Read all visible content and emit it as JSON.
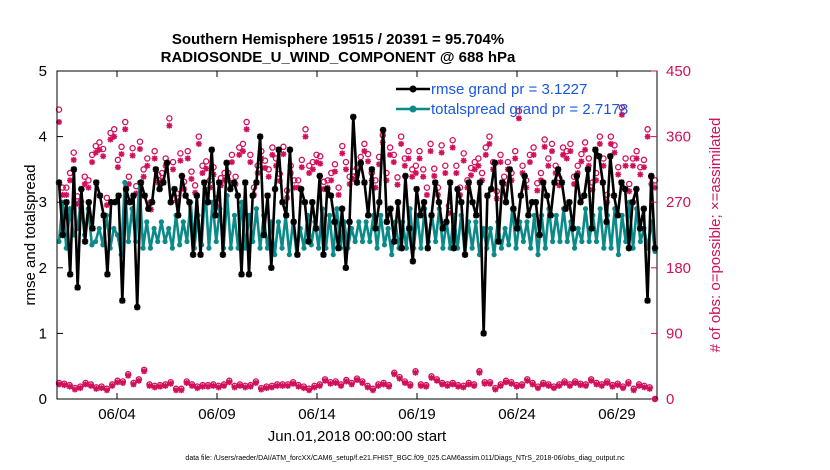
{
  "chart_data": {
    "type": "line",
    "title_line1": "Southern Hemisphere 19515 / 20391 = 95.704%",
    "title_line2": "RADIOSONDE_U_WIND_COMPONENT @ 688 hPa",
    "xlabel": "Jun.01,2018 00:00:00 start",
    "ylabel_left": "rmse and totalspread",
    "ylabel_right": "# of obs: o=possible; ×=assimilated",
    "xlim": [
      0,
      30
    ],
    "ylim_left": [
      0,
      5
    ],
    "ylim_right": [
      0,
      450
    ],
    "x_tick_values": [
      3,
      8,
      13,
      18,
      23,
      28
    ],
    "x_tick_labels": [
      "06/04",
      "06/09",
      "06/14",
      "06/19",
      "06/24",
      "06/29"
    ],
    "y_left_ticks": [
      "0",
      "1",
      "2",
      "3",
      "4",
      "5"
    ],
    "y_right_ticks": [
      "0",
      "90",
      "180",
      "270",
      "360",
      "450"
    ],
    "footnote": "data file: /Users/raeder/DAI/ATM_forcXX/CAM6_setup/f.e21.FHIST_BGC.f09_025.CAM6assim.011/Diags_NTrS_2018-06/obs_diag_output.nc",
    "colors": {
      "rmse": "#000000",
      "spread": "#0b8a8a",
      "obs": "#d0105a",
      "legend_text": "#1a57e0"
    },
    "series": [
      {
        "name": "rmse grand pr = 3.1227",
        "axis": "left",
        "values": [
          3.3,
          2.5,
          3.0,
          1.9,
          3.5,
          1.7,
          3.2,
          2.4,
          3.0,
          2.6,
          3.3,
          3.1,
          2.8,
          1.9,
          3.0,
          3.0,
          3.1,
          1.5,
          3.2,
          3.0,
          3.1,
          1.4,
          3.3,
          3.1,
          2.9,
          3.0,
          3.5,
          3.2,
          3.3,
          3.6,
          3.0,
          3.2,
          2.8,
          3.4,
          3.1,
          3.0,
          2.2,
          3.1,
          2.2,
          3.3,
          3.0,
          3.8,
          2.8,
          3.3,
          2.2,
          3.6,
          3.2,
          3.3,
          3.1,
          1.9,
          3.3,
          1.9,
          3.1,
          3.3,
          4.0,
          2.5,
          3.1,
          2.0,
          3.2,
          3.8,
          3.0,
          2.8,
          3.8,
          2.7,
          2.2,
          3.2,
          3.0,
          2.4,
          3.0,
          2.6,
          3.4,
          2.2,
          3.2,
          3.1,
          2.7,
          2.3,
          2.9,
          2.0,
          2.7,
          4.3,
          3.3,
          3.6,
          3.3,
          2.8,
          3.5,
          2.6,
          3.0,
          4.1,
          2.7,
          2.9,
          2.4,
          3.0,
          2.3,
          3.4,
          2.6,
          2.1,
          3.2,
          2.8,
          3.0,
          2.3,
          2.8,
          3.3,
          3.0,
          2.6,
          2.7,
          3.3,
          2.3,
          3.2,
          3.0,
          2.2,
          3.3,
          3.0,
          2.8,
          3.3,
          1.0,
          3.1,
          3.2,
          3.6,
          2.4,
          3.3,
          3.0,
          3.5,
          2.9,
          2.6,
          3.1,
          3.4,
          2.8,
          3.0,
          3.0,
          2.5,
          3.3,
          3.1,
          2.8,
          3.3,
          3.5,
          3.3,
          2.9,
          3.0,
          2.6,
          3.4,
          3.0,
          3.1,
          3.5,
          2.6,
          3.8,
          3.7,
          3.3,
          2.7,
          3.7,
          3.1,
          2.8,
          3.3,
          3.2,
          2.3,
          3.0,
          3.2,
          2.6,
          2.9,
          1.5,
          3.4,
          2.3
        ],
        "marker": "asterisk"
      },
      {
        "name": "totalspread grand pr = 2.7178",
        "axis": "left",
        "values": [
          2.4,
          3.0,
          2.3,
          2.9,
          2.5,
          2.6,
          3.0,
          2.5,
          2.9,
          2.35,
          2.4,
          2.6,
          2.35,
          2.8,
          2.3,
          2.6,
          2.5,
          2.2,
          3.3,
          2.4,
          2.9,
          2.4,
          3.3,
          2.3,
          2.7,
          2.3,
          2.6,
          2.4,
          2.7,
          2.4,
          2.6,
          2.3,
          2.8,
          2.35,
          2.7,
          2.4,
          3.0,
          2.3,
          2.8,
          2.35,
          3.2,
          2.3,
          3.0,
          2.4,
          2.9,
          2.3,
          3.1,
          2.3,
          2.8,
          2.3,
          3.0,
          2.3,
          2.8,
          2.4,
          2.9,
          2.3,
          2.8,
          2.3,
          2.7,
          2.2,
          2.7,
          2.3,
          2.8,
          2.2,
          2.7,
          2.2,
          2.6,
          2.3,
          2.8,
          2.35,
          2.7,
          2.3,
          2.9,
          2.3,
          2.8,
          2.2,
          2.9,
          2.3,
          2.7,
          2.3,
          2.6,
          2.4,
          2.7,
          2.4,
          2.7,
          2.4,
          2.8,
          2.3,
          2.8,
          2.35,
          2.6,
          2.2,
          2.7,
          2.3,
          2.7,
          2.3,
          2.9,
          2.3,
          2.8,
          2.3,
          2.9,
          2.4,
          2.8,
          2.4,
          2.9,
          2.3,
          2.7,
          2.3,
          2.8,
          2.3,
          2.8,
          2.2,
          2.7,
          2.3,
          2.7,
          2.2,
          2.6,
          2.3,
          2.6,
          2.2,
          2.7,
          2.3,
          2.6,
          2.35,
          2.9,
          2.3,
          2.7,
          2.4,
          2.7,
          2.3,
          2.8,
          2.2,
          2.8,
          2.3,
          2.9,
          2.4,
          2.8,
          2.4,
          2.9,
          2.4,
          2.7,
          2.3,
          2.6,
          2.4,
          2.9,
          2.4,
          2.8,
          2.4,
          2.9,
          2.3,
          2.8,
          2.3,
          2.9,
          2.2,
          2.8,
          2.4,
          3.0,
          2.3,
          2.9,
          2.4,
          2.6,
          2.3,
          2.7,
          2.25
        ],
        "marker": "circle"
      }
    ],
    "obs_possible_large": [
      397,
      290,
      290,
      310,
      338,
      278,
      271,
      305,
      300,
      335,
      347,
      352,
      343,
      276,
      365,
      370,
      328,
      346,
      380,
      305,
      344,
      292,
      353,
      315,
      330,
      270,
      340,
      307,
      310,
      330,
      385,
      325,
      282,
      337,
      298,
      340,
      312,
      293,
      360,
      320,
      326,
      300,
      318,
      275,
      303,
      310,
      310,
      335,
      305,
      345,
      350,
      380,
      335,
      290,
      320,
      340,
      327,
      315,
      345,
      330,
      309,
      346,
      286,
      320,
      300,
      300,
      328,
      370,
      320,
      325,
      335,
      333,
      298,
      300,
      310,
      322,
      290,
      347,
      325,
      305,
      312,
      317,
      332,
      350,
      336,
      310,
      300,
      332,
      362,
      310,
      345,
      335,
      304,
      360,
      330,
      340,
      315,
      320,
      340,
      315,
      290,
      350,
      316,
      290,
      348,
      320,
      265,
      355,
      320,
      290,
      337,
      300,
      317,
      325,
      330,
      310,
      345,
      360,
      325,
      285,
      335,
      305,
      325,
      310,
      340,
      395,
      320,
      300,
      335,
      345,
      296,
      310,
      356,
      330,
      350,
      320,
      303,
      345,
      340,
      350,
      305,
      320,
      336,
      352,
      330,
      297,
      310,
      360,
      330,
      280,
      360,
      348,
      318,
      400,
      330,
      295,
      330,
      340,
      318,
      328,
      370,
      305,
      300
    ],
    "obs_assimilated_large": [
      380,
      280,
      280,
      300,
      328,
      268,
      262,
      295,
      290,
      325,
      338,
      342,
      333,
      266,
      356,
      360,
      318,
      336,
      370,
      295,
      334,
      282,
      343,
      305,
      320,
      260,
      330,
      297,
      300,
      320,
      375,
      315,
      272,
      327,
      288,
      330,
      302,
      283,
      350,
      310,
      316,
      290,
      308,
      265,
      293,
      300,
      300,
      325,
      295,
      335,
      340,
      370,
      325,
      280,
      310,
      330,
      317,
      305,
      335,
      320,
      299,
      336,
      276,
      310,
      290,
      290,
      318,
      360,
      310,
      315,
      325,
      323,
      288,
      290,
      300,
      312,
      280,
      337,
      315,
      295,
      302,
      307,
      322,
      340,
      326,
      300,
      290,
      322,
      352,
      300,
      335,
      325,
      294,
      350,
      320,
      330,
      305,
      310,
      330,
      305,
      280,
      340,
      306,
      280,
      338,
      310,
      255,
      345,
      310,
      280,
      327,
      290,
      307,
      315,
      320,
      300,
      335,
      350,
      315,
      275,
      325,
      295,
      315,
      300,
      330,
      385,
      310,
      290,
      325,
      335,
      286,
      300,
      346,
      320,
      340,
      310,
      293,
      335,
      330,
      340,
      295,
      310,
      326,
      342,
      320,
      287,
      300,
      350,
      320,
      270,
      350,
      338,
      308,
      390,
      320,
      285,
      320,
      330,
      308,
      318,
      360,
      295,
      290
    ],
    "obs_possible_small": [
      22,
      21,
      19,
      15,
      17,
      22,
      20,
      16,
      17,
      14,
      20,
      25,
      24,
      34,
      22,
      27,
      40,
      20,
      18,
      19,
      20,
      23,
      14,
      14,
      24,
      20,
      17,
      19,
      19,
      20,
      18,
      20,
      25,
      18,
      20,
      18,
      19,
      24,
      15,
      17,
      18,
      20,
      20,
      20,
      23,
      19,
      17,
      14,
      18,
      20,
      27,
      23,
      24,
      20,
      26,
      22,
      28,
      24,
      18,
      14,
      20,
      22,
      19,
      36,
      30,
      24,
      20,
      38,
      20,
      19,
      31,
      27,
      22,
      20,
      22,
      19,
      18,
      22,
      20,
      38,
      23,
      23,
      15,
      20,
      25,
      23,
      19,
      20,
      27,
      22,
      17,
      22,
      20,
      17,
      20,
      24,
      20,
      24,
      21,
      20,
      27,
      22,
      20,
      24,
      19,
      21,
      17,
      23,
      14,
      20,
      18,
      16,
      0
    ],
    "obs_assimilated_small": [
      20,
      19,
      17,
      13,
      15,
      20,
      18,
      14,
      15,
      12,
      18,
      23,
      22,
      32,
      20,
      25,
      38,
      18,
      16,
      17,
      18,
      21,
      12,
      12,
      22,
      18,
      15,
      17,
      17,
      18,
      16,
      18,
      23,
      16,
      18,
      16,
      17,
      22,
      13,
      15,
      16,
      18,
      18,
      18,
      21,
      17,
      15,
      12,
      16,
      18,
      25,
      21,
      22,
      18,
      24,
      20,
      26,
      22,
      16,
      12,
      18,
      20,
      17,
      34,
      28,
      22,
      18,
      36,
      18,
      17,
      29,
      25,
      20,
      18,
      20,
      17,
      16,
      20,
      18,
      36,
      21,
      21,
      13,
      18,
      23,
      21,
      17,
      18,
      25,
      20,
      15,
      20,
      18,
      15,
      18,
      22,
      18,
      22,
      19,
      18,
      25,
      20,
      18,
      22,
      17,
      19,
      15,
      21,
      12,
      18,
      16,
      14,
      0
    ]
  }
}
